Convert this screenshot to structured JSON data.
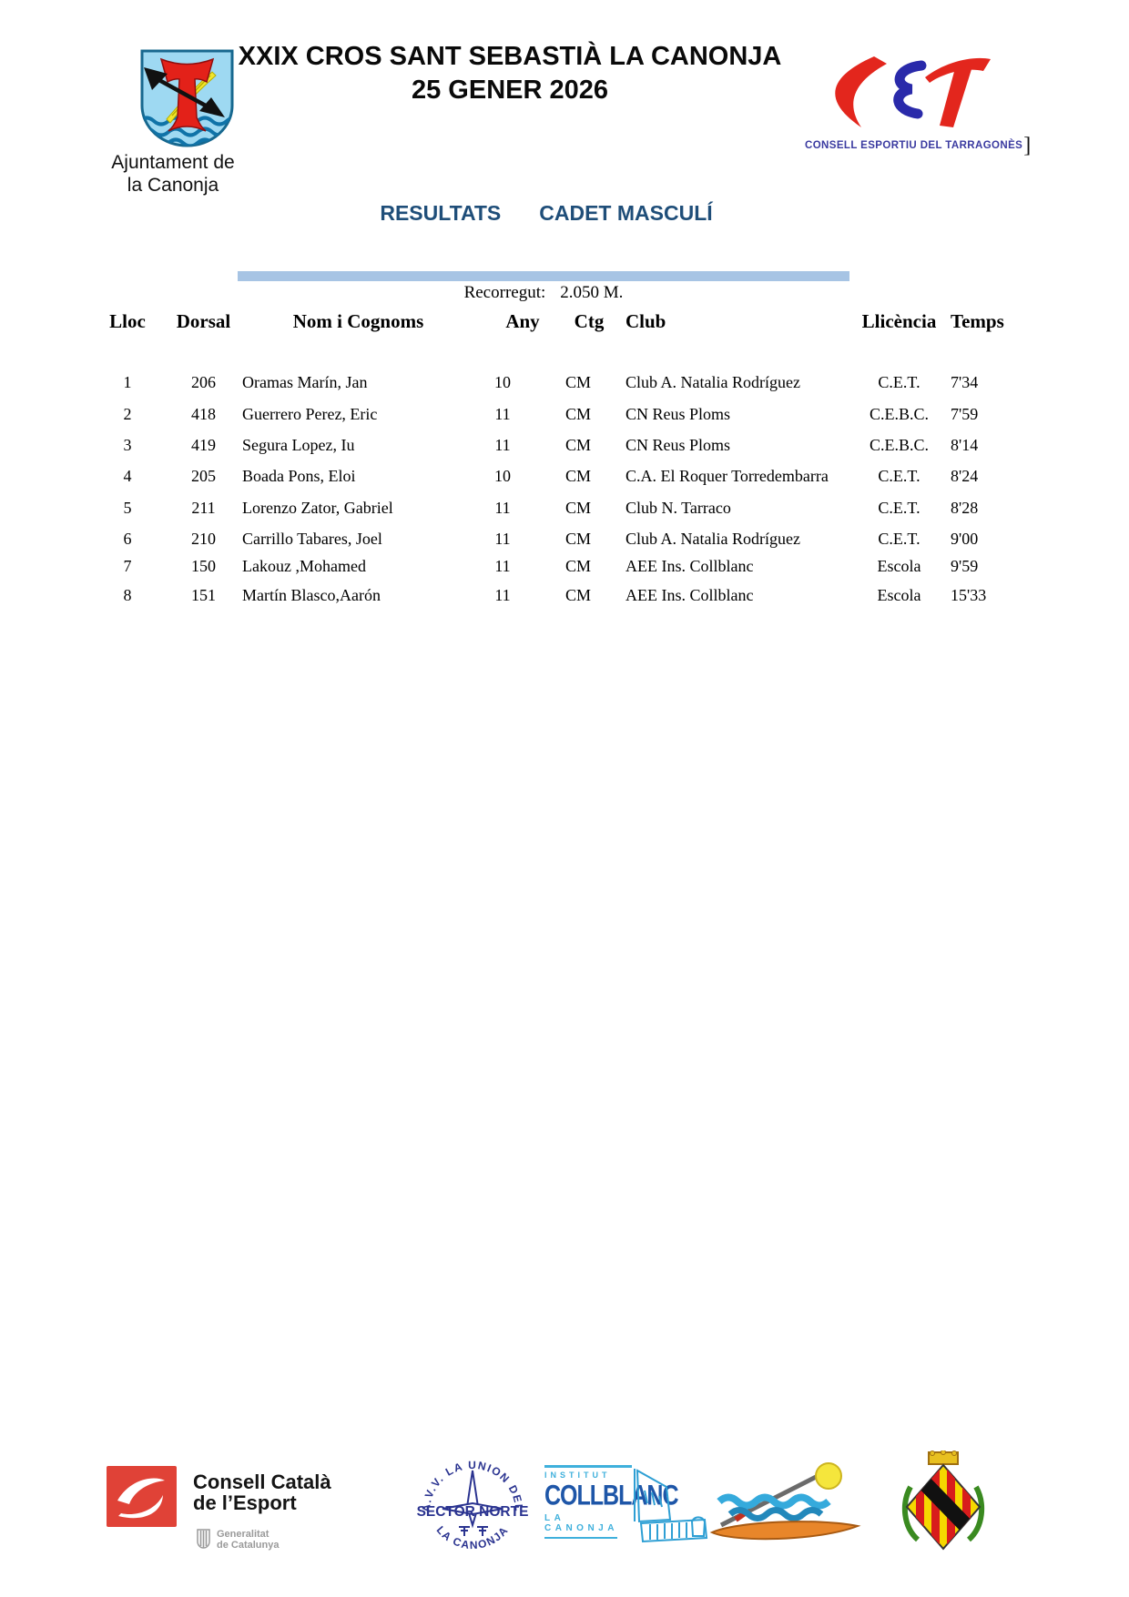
{
  "header": {
    "event_title_line1": "XXIX CROS SANT SEBASTIÀ LA CANONJA",
    "event_title_line2": "25 GENER 2026",
    "municipality_line1": "Ajuntament de",
    "municipality_line2": "la Canonja",
    "cet_caption": "CONSELL ESPORTIU DEL TARRAGONÈS",
    "cet_bracket": "]",
    "results_label": "RESULTATS",
    "category_label": "CADET MASCULÍ"
  },
  "course": {
    "label": "Recorregut:",
    "value": "2.050 M."
  },
  "table": {
    "columns": {
      "lloc": "Lloc",
      "dorsal": "Dorsal",
      "nom": "Nom i Cognoms",
      "any": "Any",
      "ctg": "Ctg",
      "club": "Club",
      "llicencia": "Llicència",
      "temps": "Temps"
    },
    "rows": [
      {
        "lloc": "1",
        "dorsal": "206",
        "nom": "Oramas Marín, Jan",
        "any": "10",
        "ctg": "CM",
        "club": "Club A. Natalia Rodríguez",
        "llicencia": "C.E.T.",
        "temps": "7'34"
      },
      {
        "lloc": "2",
        "dorsal": "418",
        "nom": "Guerrero Perez, Eric",
        "any": "11",
        "ctg": "CM",
        "club": "CN Reus Ploms",
        "llicencia": "C.E.B.C.",
        "temps": "7'59"
      },
      {
        "lloc": "3",
        "dorsal": "419",
        "nom": "Segura Lopez, Iu",
        "any": "11",
        "ctg": "CM",
        "club": "CN Reus Ploms",
        "llicencia": "C.E.B.C.",
        "temps": "8'14"
      },
      {
        "lloc": "4",
        "dorsal": "205",
        "nom": "Boada Pons, Eloi",
        "any": "10",
        "ctg": "CM",
        "club": "C.A. El Roquer Torredembarra",
        "llicencia": "C.E.T.",
        "temps": "8'24"
      },
      {
        "lloc": "5",
        "dorsal": "211",
        "nom": "Lorenzo Zator, Gabriel",
        "any": "11",
        "ctg": "CM",
        "club": "Club N. Tarraco",
        "llicencia": "C.E.T.",
        "temps": "8'28"
      },
      {
        "lloc": "6",
        "dorsal": "210",
        "nom": "Carrillo Tabares, Joel",
        "any": "11",
        "ctg": "CM",
        "club": "Club A. Natalia Rodríguez",
        "llicencia": "C.E.T.",
        "temps": "9'00"
      },
      {
        "lloc": "7",
        "dorsal": "150",
        "nom": "Lakouz ,Mohamed",
        "any": "11",
        "ctg": "CM",
        "club": "AEE Ins. Collblanc",
        "llicencia": "Escola",
        "temps": "9'59"
      },
      {
        "lloc": "8",
        "dorsal": "151",
        "nom": "Martín Blasco,Aarón",
        "any": "11",
        "ctg": "CM",
        "club": "AEE Ins. Collblanc",
        "llicencia": "Escola",
        "temps": "15'33"
      }
    ]
  },
  "footer": {
    "consell": {
      "line1": "Consell Català",
      "line2": "de l’Esport",
      "gen_line1": "Generalitat",
      "gen_line2": "de Catalunya"
    },
    "sector_norte": {
      "arc_top": "A.V.V. LA UNION DEL",
      "center": "SECTOR NORTE",
      "arc_bottom": "LA CANONJA"
    },
    "collblanc": {
      "top": "INSTITUT",
      "name": "COLLBLANC",
      "bottom": "LA CANONJA"
    }
  },
  "colors": {
    "heading_blue": "#1f4e79",
    "bar_blue": "#a7c4e4",
    "cet_red": "#e3261d",
    "cet_blue": "#2a2aaa",
    "cet_caption_blue": "#3a3aa0",
    "consell_red": "#e04237",
    "sector_navy": "#2a3390",
    "collblanc_light_blue": "#3fb0dc",
    "collblanc_dark_blue": "#1e56a8"
  }
}
